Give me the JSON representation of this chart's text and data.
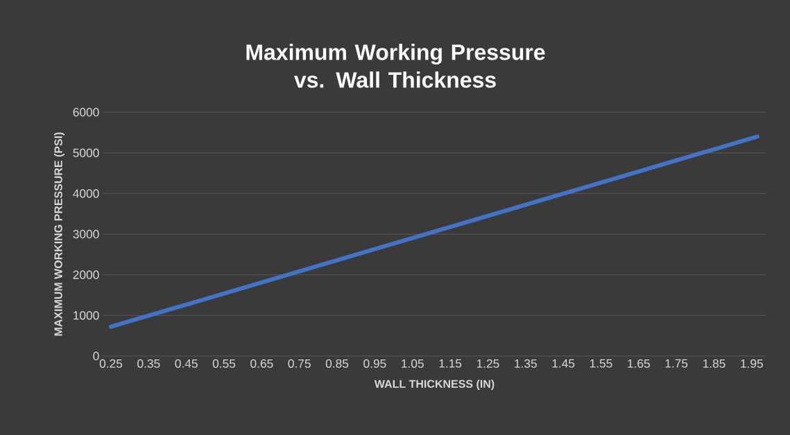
{
  "chart_data": {
    "type": "line",
    "title": "Maximum Working Pressure vs. Wall Thickness",
    "xlabel": "WALL THICKNESS (IN)",
    "ylabel": "MAXIMUM WORKING PRESSURE (PSI)",
    "x": [
      0.25,
      1.965
    ],
    "series": [
      {
        "color": "#4472c4",
        "values": [
          720,
          5400
        ]
      }
    ],
    "xlim": [
      0.228,
      1.989
    ],
    "xticks": [
      0.25,
      0.35,
      0.45,
      0.55,
      0.65,
      0.75,
      0.85,
      0.95,
      1.05,
      1.15,
      1.25,
      1.35,
      1.45,
      1.55,
      1.65,
      1.75,
      1.85,
      1.95
    ],
    "ylim": [
      0,
      6000
    ],
    "yticks": [
      0,
      1000,
      2000,
      3000,
      4000,
      5000,
      6000
    ],
    "grid": "y",
    "marker": "none",
    "line_style": "solid"
  }
}
